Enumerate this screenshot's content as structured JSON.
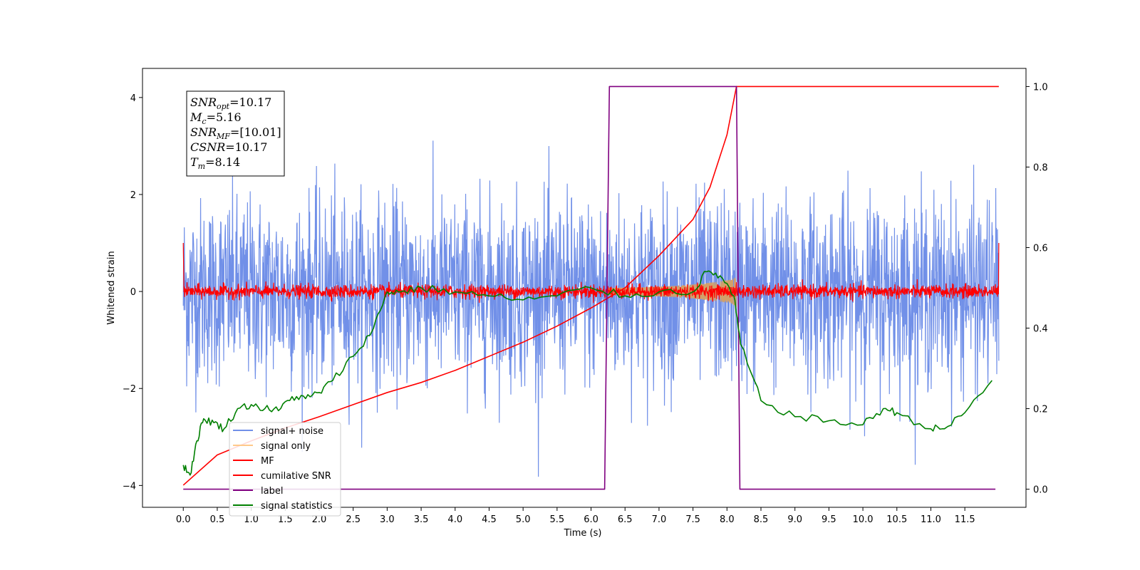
{
  "chart_data": {
    "type": "line",
    "xlabel": "Time (s)",
    "ylabel": "Whitened strain",
    "xlim": [
      -0.6,
      12.4
    ],
    "ylim": [
      -4.45,
      4.6
    ],
    "y2lim": [
      -0.045,
      1.045
    ],
    "x_ticks": [
      "0.0",
      "0.5",
      "1.0",
      "1.5",
      "2.0",
      "2.5",
      "3.0",
      "3.5",
      "4.0",
      "4.5",
      "5.0",
      "5.5",
      "6.0",
      "6.5",
      "7.0",
      "7.5",
      "8.0",
      "8.5",
      "9.0",
      "9.5",
      "10.0",
      "10.5",
      "11.0",
      "11.5"
    ],
    "y_ticks": [
      "−4",
      "−2",
      "0",
      "2",
      "4"
    ],
    "y2_ticks": [
      "0.0",
      "0.2",
      "0.4",
      "0.6",
      "0.8",
      "1.0"
    ],
    "grid": false,
    "legend_position": "lower-left",
    "annotation": {
      "lines": [
        {
          "var": "SNR",
          "sub": "opt",
          "value": "=10.17"
        },
        {
          "var": "M",
          "sub": "c",
          "value": "=5.16"
        },
        {
          "var": "SNR",
          "sub": "MF",
          "value": "=[10.01]"
        },
        {
          "var": "CSNR",
          "sub": "",
          "value": "=10.17"
        },
        {
          "var": "T",
          "sub": "m",
          "value": "=8.14"
        }
      ]
    },
    "series": [
      {
        "name": "signal+ noise",
        "color": "#7190e8",
        "axis": "left",
        "kind": "noise",
        "duration": 12.0,
        "std": 0.95
      },
      {
        "name": "signal only",
        "color": "#d2a06a",
        "axis": "left",
        "kind": "chirp",
        "start": 6.25,
        "end": 8.14
      },
      {
        "name": "MF",
        "color": "#ff0000",
        "axis": "left",
        "kind": "mf",
        "std": 0.07
      },
      {
        "name": "cumilative SNR",
        "color": "#ff0000",
        "axis": "right",
        "x": [
          0.0,
          0.5,
          1.0,
          1.5,
          2.0,
          2.5,
          3.0,
          3.5,
          4.0,
          4.5,
          5.0,
          5.5,
          6.0,
          6.5,
          7.0,
          7.5,
          7.75,
          8.0,
          8.14,
          8.15,
          12.0
        ],
        "y": [
          0.01,
          0.085,
          0.12,
          0.152,
          0.18,
          0.21,
          0.24,
          0.265,
          0.295,
          0.33,
          0.365,
          0.405,
          0.45,
          0.5,
          0.58,
          0.67,
          0.75,
          0.88,
          1.0,
          1.0,
          1.0
        ]
      },
      {
        "name": "label",
        "color": "#800080",
        "axis": "right",
        "x": [
          0.0,
          6.2,
          6.27,
          8.14,
          8.19,
          11.95
        ],
        "y": [
          0.0,
          0.0,
          1.0,
          1.0,
          0.0,
          0.0
        ]
      },
      {
        "name": "signal statistics",
        "color": "#008000",
        "axis": "right",
        "x": [
          0.0,
          0.1,
          0.2,
          0.3,
          0.45,
          0.6,
          0.8,
          1.0,
          1.2,
          1.4,
          1.6,
          1.8,
          2.0,
          2.2,
          2.5,
          2.8,
          3.0,
          3.2,
          3.5,
          4.0,
          4.5,
          5.0,
          5.5,
          6.0,
          6.5,
          7.0,
          7.5,
          7.7,
          7.9,
          8.1,
          8.2,
          8.5,
          9.0,
          9.5,
          10.0,
          10.3,
          10.5,
          11.0,
          11.2,
          11.5,
          11.9
        ],
        "y": [
          0.06,
          0.035,
          0.12,
          0.175,
          0.165,
          0.15,
          0.2,
          0.21,
          0.2,
          0.195,
          0.23,
          0.225,
          0.24,
          0.27,
          0.33,
          0.4,
          0.49,
          0.49,
          0.5,
          0.49,
          0.48,
          0.47,
          0.48,
          0.5,
          0.48,
          0.49,
          0.49,
          0.54,
          0.53,
          0.48,
          0.36,
          0.22,
          0.18,
          0.17,
          0.16,
          0.2,
          0.19,
          0.15,
          0.15,
          0.19,
          0.27
        ]
      }
    ]
  }
}
